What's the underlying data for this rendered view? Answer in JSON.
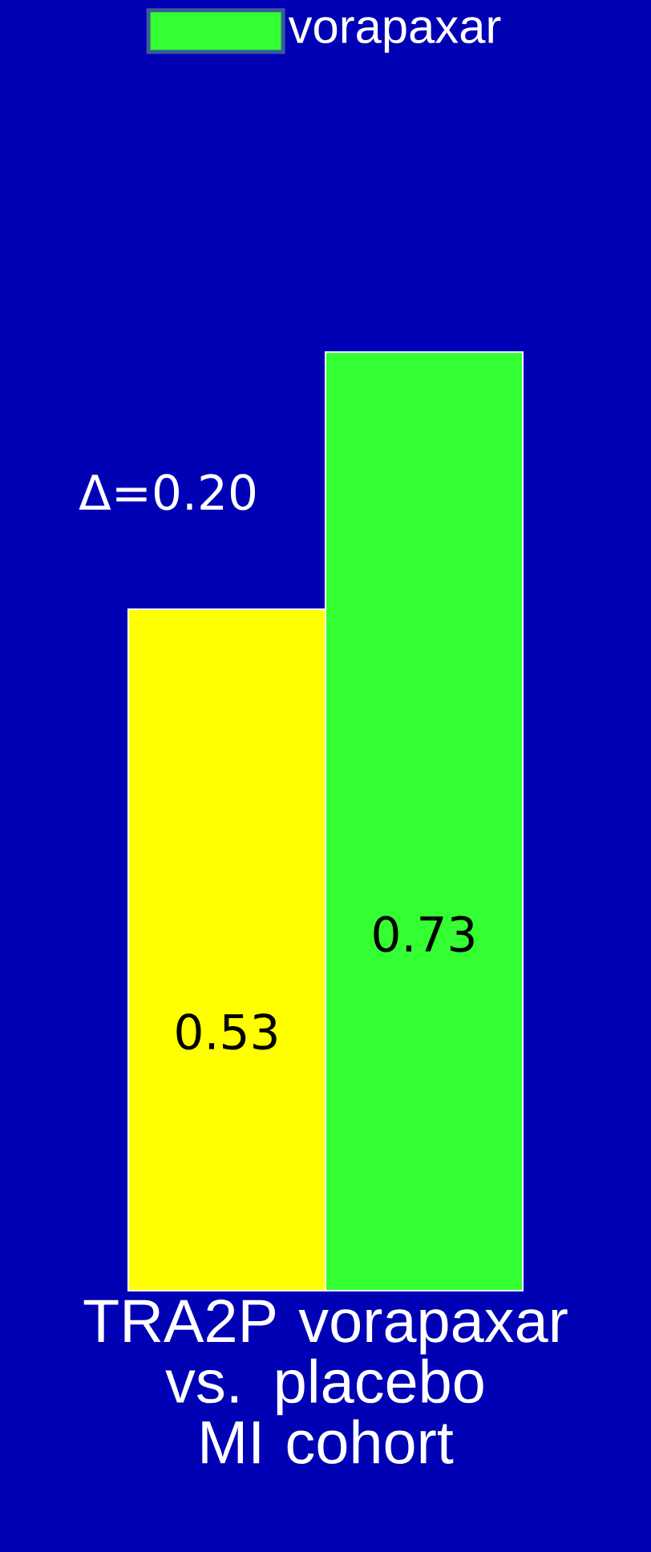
{
  "chart_data": {
    "type": "bar",
    "categories": [
      "TRA2P vorapaxar vs. placebo MI cohort"
    ],
    "series": [
      {
        "color": "#ffff00",
        "values": [
          0.53
        ]
      },
      {
        "name": "vorapaxar",
        "color": "#33ff33",
        "values": [
          0.73
        ]
      }
    ],
    "data_labels": true,
    "legend": "top",
    "annotations": [
      "Δ=0.20"
    ]
  }
}
